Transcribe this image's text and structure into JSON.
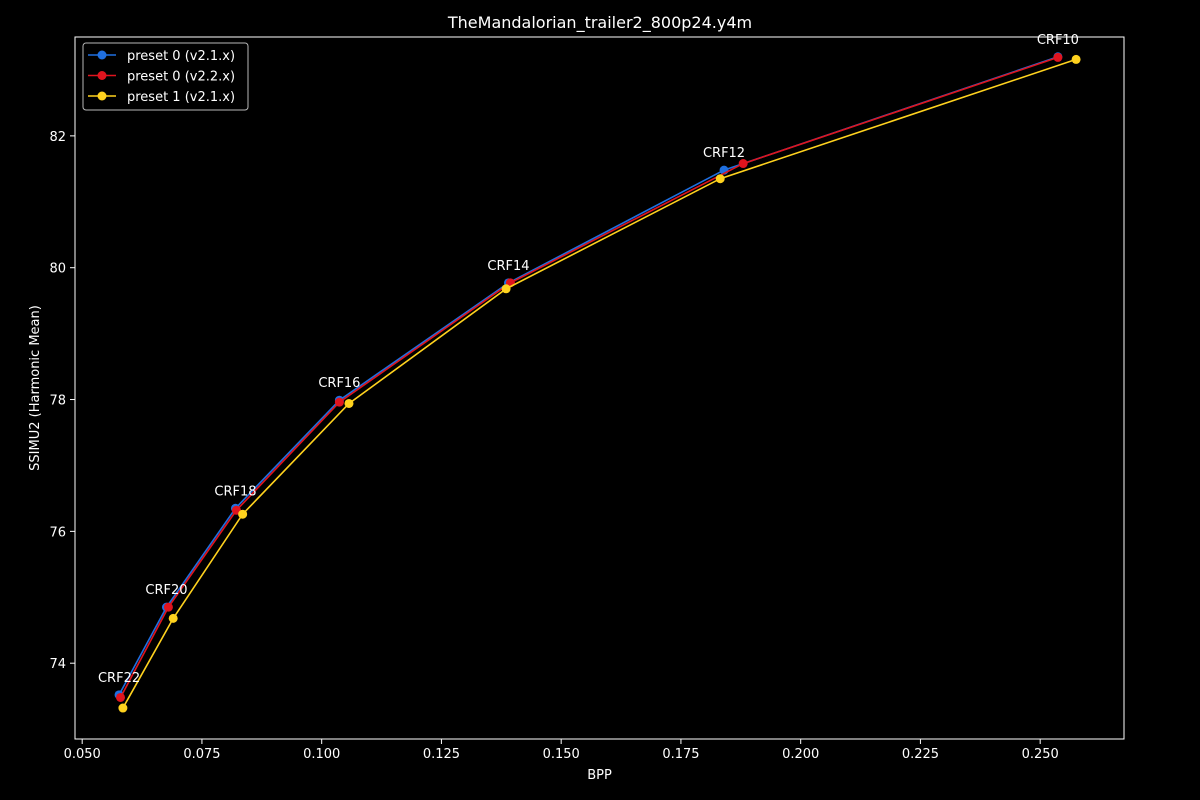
{
  "chart_data": {
    "type": "line",
    "title": "TheMandalorian_trailer2_800p24.y4m",
    "xlabel": "BPP",
    "ylabel": "SSIMU2 (Harmonic Mean)",
    "xlim": [
      0.0485,
      0.2675
    ],
    "ylim": [
      72.85,
      83.5
    ],
    "xticks": [
      0.05,
      0.075,
      0.1,
      0.125,
      0.15,
      0.175,
      0.2,
      0.225,
      0.25
    ],
    "xtick_labels": [
      "0.050",
      "0.075",
      "0.100",
      "0.125",
      "0.150",
      "0.175",
      "0.200",
      "0.225",
      "0.250"
    ],
    "yticks": [
      74,
      76,
      78,
      80,
      82
    ],
    "ytick_labels": [
      "74",
      "76",
      "78",
      "80",
      "82"
    ],
    "grid": false,
    "legend_position": "top-left",
    "series": [
      {
        "name": "preset 0 (v2.1.x)",
        "color": "#1f6fe0",
        "x": [
          0.0577,
          0.0676,
          0.082,
          0.1037,
          0.139,
          0.184,
          0.2537
        ],
        "y": [
          73.52,
          74.85,
          76.35,
          77.99,
          79.77,
          81.48,
          83.2
        ]
      },
      {
        "name": "preset 0 (v2.2.x)",
        "color": "#e0141e",
        "x": [
          0.058,
          0.068,
          0.0822,
          0.1037,
          0.1394,
          0.188,
          0.2537
        ],
        "y": [
          73.48,
          74.85,
          76.32,
          77.96,
          79.77,
          81.58,
          83.19
        ]
      },
      {
        "name": "preset 1 (v2.1.x)",
        "color": "#ffd21e",
        "x": [
          0.0585,
          0.069,
          0.0835,
          0.1057,
          0.1385,
          0.1832,
          0.2575
        ],
        "y": [
          73.32,
          74.68,
          76.26,
          77.94,
          79.68,
          81.35,
          83.16
        ]
      }
    ],
    "annotations": [
      {
        "text": "CRF22",
        "x": 0.0577,
        "y": 73.52
      },
      {
        "text": "CRF20",
        "x": 0.0676,
        "y": 74.85
      },
      {
        "text": "CRF18",
        "x": 0.082,
        "y": 76.35
      },
      {
        "text": "CRF16",
        "x": 0.1037,
        "y": 77.99
      },
      {
        "text": "CRF14",
        "x": 0.139,
        "y": 79.77
      },
      {
        "text": "CRF12",
        "x": 0.184,
        "y": 81.48
      },
      {
        "text": "CRF10",
        "x": 0.2537,
        "y": 83.2
      }
    ]
  }
}
